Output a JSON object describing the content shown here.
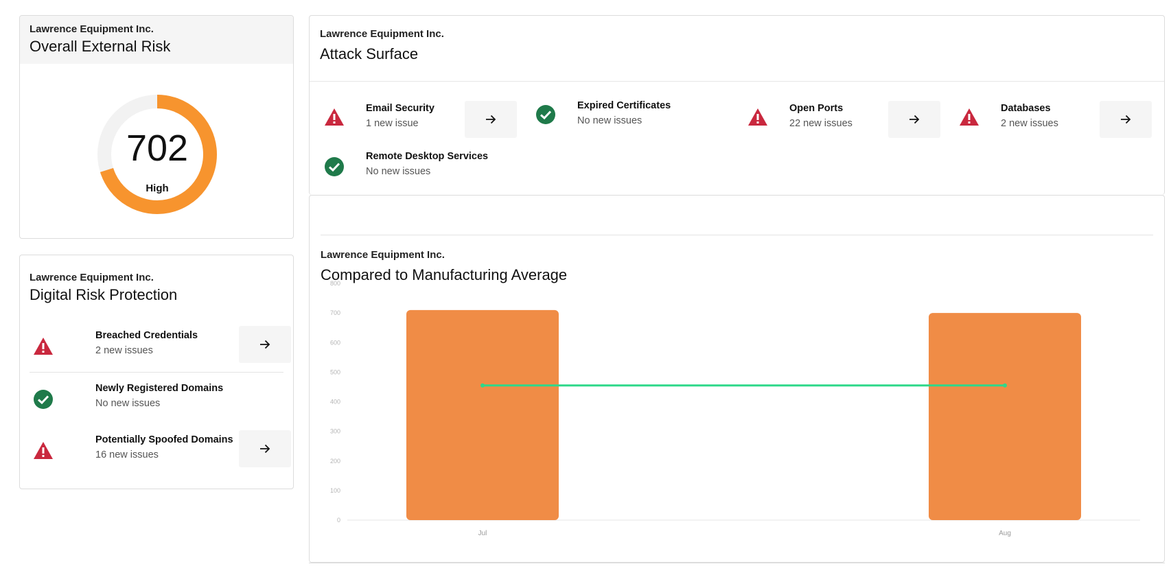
{
  "risk_card": {
    "company": "Lawrence Equipment Inc.",
    "title": "Overall External Risk",
    "score": "702",
    "score_max": 1000,
    "rating": "High",
    "gauge_color": "#f7942e",
    "track_color": "#f2f2f2"
  },
  "drp_card": {
    "company": "Lawrence Equipment Inc.",
    "title": "Digital Risk Protection",
    "items": [
      {
        "title": "Breached Credentials",
        "subtitle": "2 new issues",
        "status": "warning",
        "icon": "warning-icon"
      },
      {
        "title": "Newly Registered Domains",
        "subtitle": "No new issues",
        "status": "ok",
        "icon": "check-circle-icon"
      },
      {
        "title": "Potentially Spoofed Domains",
        "subtitle": "16 new issues",
        "status": "warning",
        "icon": "warning-icon"
      }
    ]
  },
  "attack_surface": {
    "company": "Lawrence Equipment Inc.",
    "title": "Attack Surface",
    "items": [
      {
        "title": "Email Security",
        "subtitle": "1 new issue",
        "status": "warning",
        "icon": "warning-icon"
      },
      {
        "title": "Expired Certificates",
        "subtitle": "No new issues",
        "status": "ok",
        "icon": "check-circle-icon"
      },
      {
        "title": "Open Ports",
        "subtitle": "22 new issues",
        "status": "warning",
        "icon": "warning-icon"
      },
      {
        "title": "Databases",
        "subtitle": "2 new issues",
        "status": "warning",
        "icon": "warning-icon"
      },
      {
        "title": "Remote Desktop Services",
        "subtitle": "No new issues",
        "status": "ok",
        "icon": "check-circle-icon"
      }
    ]
  },
  "comparison": {
    "company": "Lawrence Equipment Inc.",
    "title": "Compared to Manufacturing Average"
  },
  "colors": {
    "warning": "#c9283e",
    "ok": "#1f7a4a",
    "bar": "#f08c46",
    "average_line": "#2fd88a"
  },
  "chart_data": {
    "type": "bar",
    "categories": [
      "Jul",
      "Aug"
    ],
    "series": [
      {
        "values": [
          710,
          700
        ],
        "kind": "bar"
      },
      {
        "values": [
          455,
          455
        ],
        "kind": "line"
      }
    ],
    "yticks": [
      0,
      100,
      200,
      300,
      400,
      500,
      600,
      700,
      800
    ],
    "ylim": [
      0,
      800
    ],
    "grid": false,
    "legend": "none"
  }
}
